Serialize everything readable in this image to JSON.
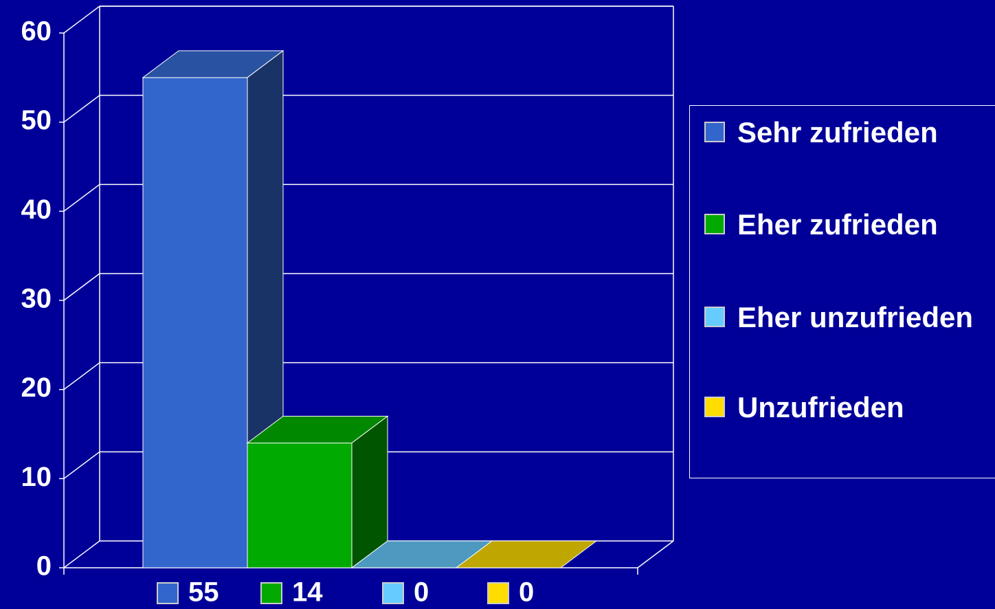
{
  "chart_data": {
    "type": "bar",
    "series": [
      {
        "name": "Sehr zufrieden",
        "color": "#3366cc",
        "values": [
          55
        ]
      },
      {
        "name": "Eher zufrieden",
        "color": "#00aa00",
        "values": [
          14
        ]
      },
      {
        "name": "Eher unzufrieden",
        "color": "#66ccff",
        "values": [
          0
        ]
      },
      {
        "name": "Unzufrieden",
        "color": "#ffdd00",
        "values": [
          0
        ]
      }
    ],
    "ylim": [
      0,
      60
    ],
    "yticks": [
      0,
      10,
      20,
      30,
      40,
      50,
      60
    ],
    "grid": true,
    "legend": "right"
  }
}
